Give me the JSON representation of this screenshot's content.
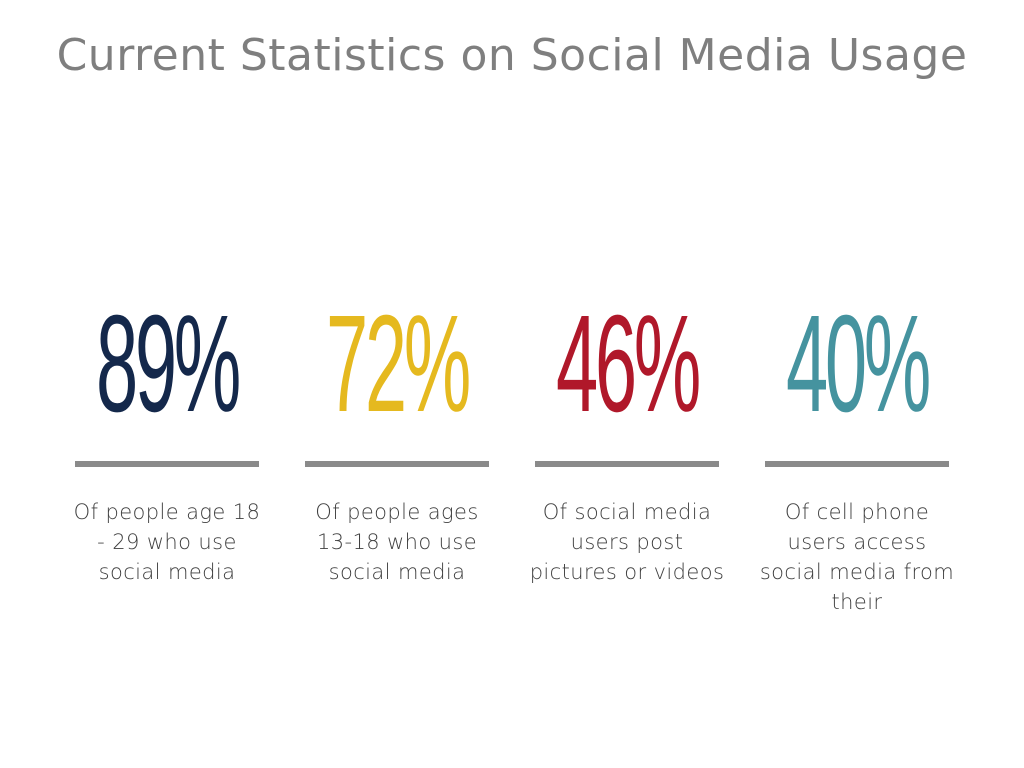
{
  "title": "Current Statistics on Social Media Usage",
  "stats": [
    {
      "value": "89%",
      "color": "#14284b",
      "caption": "Of people age 18 - 29 who use social media"
    },
    {
      "value": "72%",
      "color": "#e5b91f",
      "caption": "Of people ages 13-18 who use social media"
    },
    {
      "value": "46%",
      "color": "#b0182a",
      "caption": "Of social media users post pictures or videos"
    },
    {
      "value": "40%",
      "color": "#45939f",
      "caption": "Of cell phone users access social media from their"
    }
  ],
  "rule_color": "#8a8a8a",
  "title_color": "#7f7f7f"
}
